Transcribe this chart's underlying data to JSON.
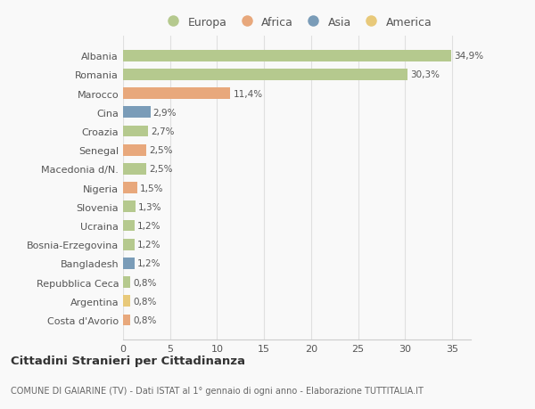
{
  "categories": [
    "Albania",
    "Romania",
    "Marocco",
    "Cina",
    "Croazia",
    "Senegal",
    "Macedonia d/N.",
    "Nigeria",
    "Slovenia",
    "Ucraina",
    "Bosnia-Erzegovina",
    "Bangladesh",
    "Repubblica Ceca",
    "Argentina",
    "Costa d'Avorio"
  ],
  "values": [
    34.9,
    30.3,
    11.4,
    2.9,
    2.7,
    2.5,
    2.5,
    1.5,
    1.3,
    1.2,
    1.2,
    1.2,
    0.8,
    0.8,
    0.8
  ],
  "labels": [
    "34,9%",
    "30,3%",
    "11,4%",
    "2,9%",
    "2,7%",
    "2,5%",
    "2,5%",
    "1,5%",
    "1,3%",
    "1,2%",
    "1,2%",
    "1,2%",
    "0,8%",
    "0,8%",
    "0,8%"
  ],
  "continents": [
    "Europa",
    "Europa",
    "Africa",
    "Asia",
    "Europa",
    "Africa",
    "Europa",
    "Africa",
    "Europa",
    "Europa",
    "Europa",
    "Asia",
    "Europa",
    "America",
    "Africa"
  ],
  "colors": {
    "Europa": "#b5c98e",
    "Africa": "#e8a87c",
    "Asia": "#7a9cb8",
    "America": "#e8c97a"
  },
  "legend_order": [
    "Europa",
    "Africa",
    "Asia",
    "America"
  ],
  "legend_colors": [
    "#b5c98e",
    "#e8a87c",
    "#7a9cb8",
    "#e8c97a"
  ],
  "title": "Cittadini Stranieri per Cittadinanza",
  "subtitle": "COMUNE DI GAIARINE (TV) - Dati ISTAT al 1° gennaio di ogni anno - Elaborazione TUTTITALIA.IT",
  "xlim": [
    0,
    37
  ],
  "xticks": [
    0,
    5,
    10,
    15,
    20,
    25,
    30,
    35
  ],
  "background_color": "#f9f9f9",
  "bar_height": 0.6,
  "grid_color": "#e0e0e0"
}
